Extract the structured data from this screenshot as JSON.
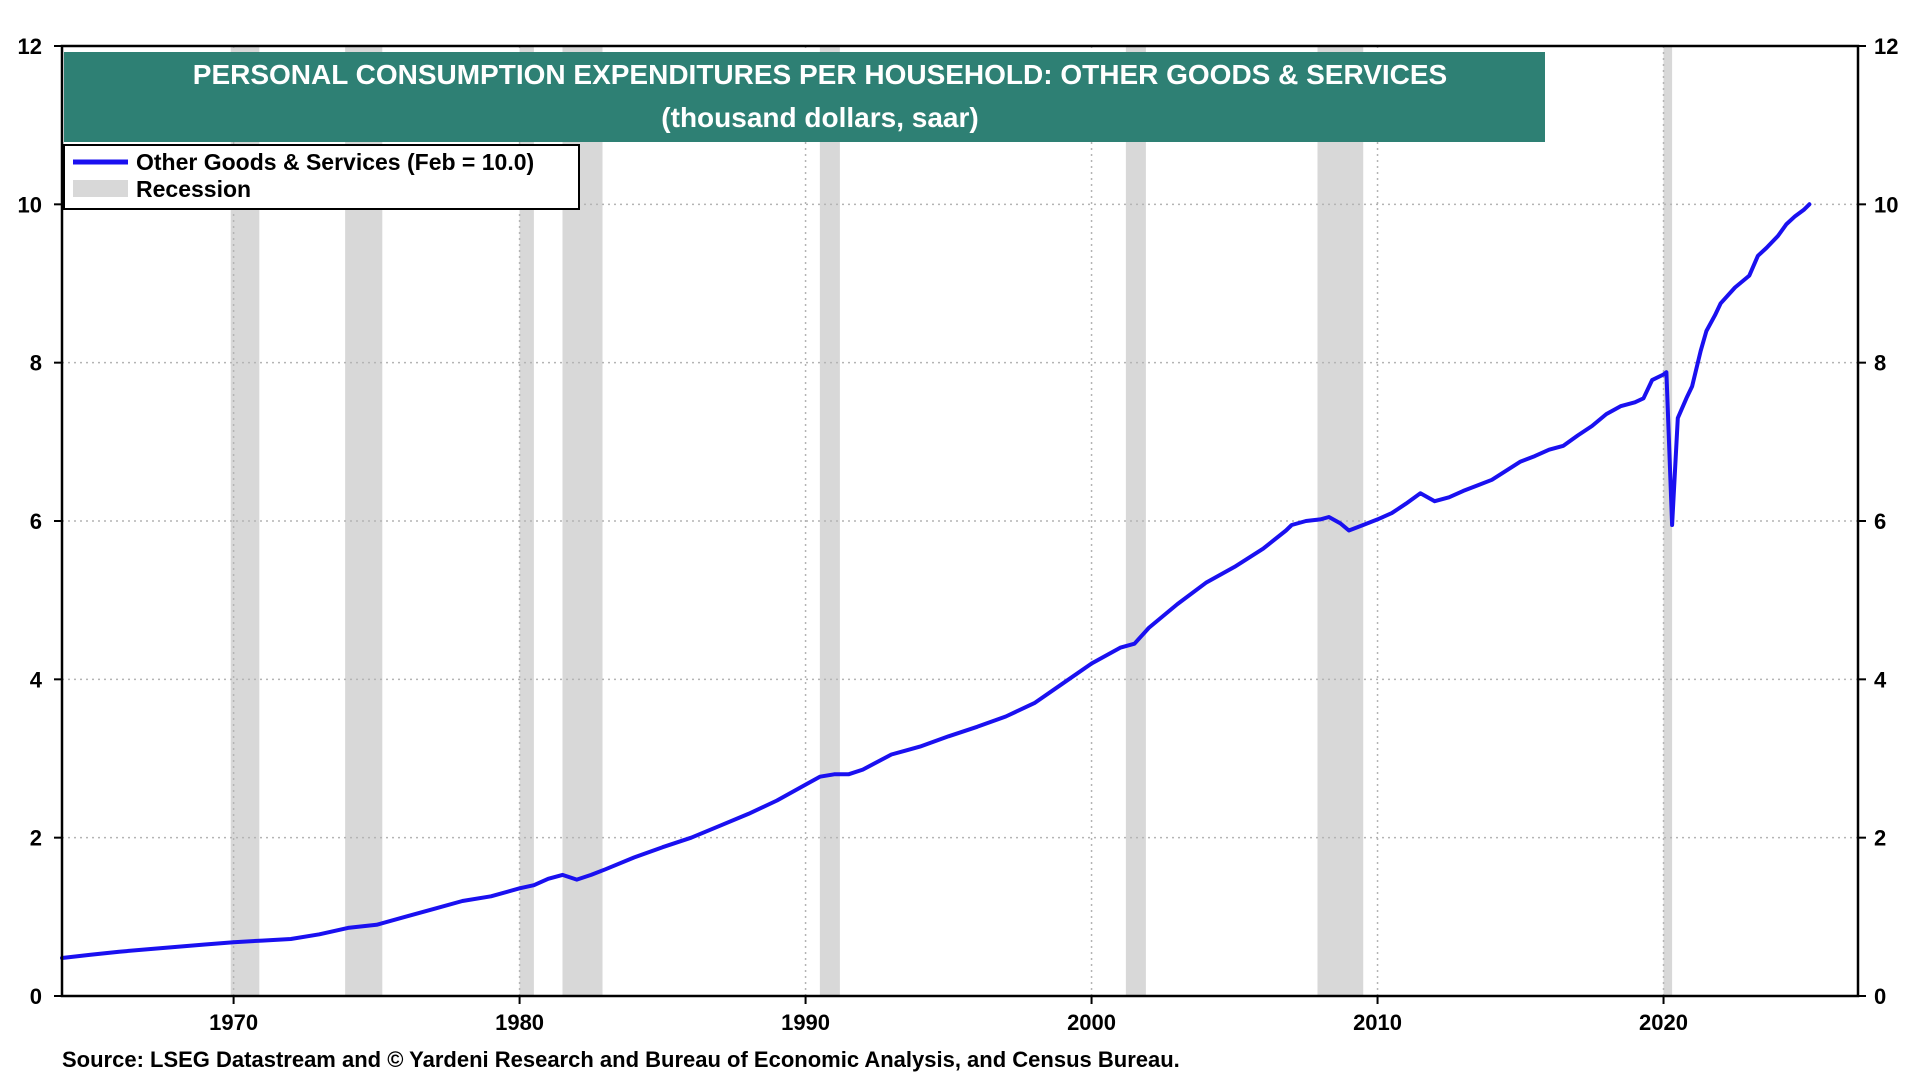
{
  "chart_data": {
    "type": "line",
    "title": "PERSONAL CONSUMPTION EXPENDITURES PER HOUSEHOLD: OTHER GOODS & SERVICES",
    "subtitle": "(thousand dollars, saar)",
    "xlabel": "",
    "ylabel": "",
    "xlim": [
      1964.0,
      2026.8
    ],
    "ylim": [
      0,
      12
    ],
    "x_ticks": [
      1970,
      1980,
      1990,
      2000,
      2010,
      2020
    ],
    "x_tick_labels": [
      "1970",
      "1980",
      "1990",
      "2000",
      "2010",
      "2020"
    ],
    "y_ticks": [
      0,
      2,
      4,
      6,
      8,
      10,
      12
    ],
    "y_tick_labels": [
      "0",
      "2",
      "4",
      "6",
      "8",
      "10",
      "12"
    ],
    "grid": true,
    "legend_position": "top-left",
    "series": [
      {
        "name": "Other Goods & Services (Feb = 10.0)",
        "color": "#1a10f0",
        "x": [
          1964.0,
          1965.0,
          1966.0,
          1967.0,
          1968.0,
          1969.0,
          1970.0,
          1971.0,
          1972.0,
          1973.0,
          1974.0,
          1975.0,
          1976.0,
          1977.0,
          1978.0,
          1979.0,
          1980.0,
          1980.5,
          1981.0,
          1981.5,
          1982.0,
          1982.5,
          1983.0,
          1984.0,
          1985.0,
          1986.0,
          1987.0,
          1988.0,
          1989.0,
          1990.0,
          1990.5,
          1991.0,
          1991.5,
          1992.0,
          1993.0,
          1993.5,
          1994.0,
          1995.0,
          1996.0,
          1997.0,
          1998.0,
          1999.0,
          2000.0,
          2001.0,
          2001.5,
          2002.0,
          2003.0,
          2004.0,
          2005.0,
          2006.0,
          2006.8,
          2007.0,
          2007.5,
          2008.0,
          2008.3,
          2008.7,
          2009.0,
          2009.5,
          2010.0,
          2010.5,
          2011.0,
          2011.5,
          2012.0,
          2012.5,
          2013.0,
          2013.5,
          2014.0,
          2015.0,
          2015.5,
          2016.0,
          2016.5,
          2017.0,
          2017.5,
          2018.0,
          2018.5,
          2019.0,
          2019.3,
          2019.6,
          2020.0,
          2020.1,
          2020.3,
          2020.5,
          2020.8,
          2021.0,
          2021.3,
          2021.5,
          2021.8,
          2022.0,
          2022.5,
          2023.0,
          2023.3,
          2023.6,
          2024.0,
          2024.3,
          2024.6,
          2024.9,
          2025.1
        ],
        "values": [
          0.48,
          0.52,
          0.56,
          0.59,
          0.62,
          0.65,
          0.68,
          0.7,
          0.72,
          0.78,
          0.86,
          0.9,
          1.0,
          1.1,
          1.2,
          1.26,
          1.36,
          1.4,
          1.48,
          1.53,
          1.47,
          1.53,
          1.6,
          1.75,
          1.88,
          2.0,
          2.15,
          2.3,
          2.47,
          2.67,
          2.77,
          2.8,
          2.8,
          2.86,
          3.05,
          3.1,
          3.15,
          3.28,
          3.4,
          3.53,
          3.7,
          3.95,
          4.2,
          4.4,
          4.45,
          4.65,
          4.95,
          5.22,
          5.42,
          5.65,
          5.88,
          5.95,
          6.0,
          6.02,
          6.05,
          5.97,
          5.88,
          5.95,
          6.02,
          6.1,
          6.22,
          6.35,
          6.25,
          6.3,
          6.38,
          6.45,
          6.52,
          6.75,
          6.82,
          6.9,
          6.95,
          7.08,
          7.2,
          7.35,
          7.45,
          7.5,
          7.55,
          7.78,
          7.85,
          7.88,
          5.95,
          7.3,
          7.55,
          7.7,
          8.15,
          8.4,
          8.6,
          8.75,
          8.95,
          9.1,
          9.35,
          9.45,
          9.6,
          9.75,
          9.85,
          9.93,
          10.0
        ]
      }
    ],
    "recessions": [
      [
        1969.9,
        1970.9
      ],
      [
        1973.9,
        1975.2
      ],
      [
        1980.0,
        1980.5
      ],
      [
        1981.5,
        1982.9
      ],
      [
        1990.5,
        1991.2
      ],
      [
        2001.2,
        2001.9
      ],
      [
        2007.9,
        2009.5
      ],
      [
        2020.0,
        2020.3
      ]
    ],
    "legend": [
      {
        "label": "Other Goods & Services (Feb = 10.0)",
        "kind": "line"
      },
      {
        "label": "Recession",
        "kind": "band"
      }
    ],
    "source": "Source: LSEG Datastream and © Yardeni Research and Bureau of Economic Analysis, and Census Bureau.",
    "colors": {
      "line": "#1a10f0",
      "recession": "#d8d8d8",
      "title_bg": "#2e8074",
      "title_text": "#ffffff",
      "grid": "#b4b4b4",
      "frame": "#000000"
    }
  }
}
